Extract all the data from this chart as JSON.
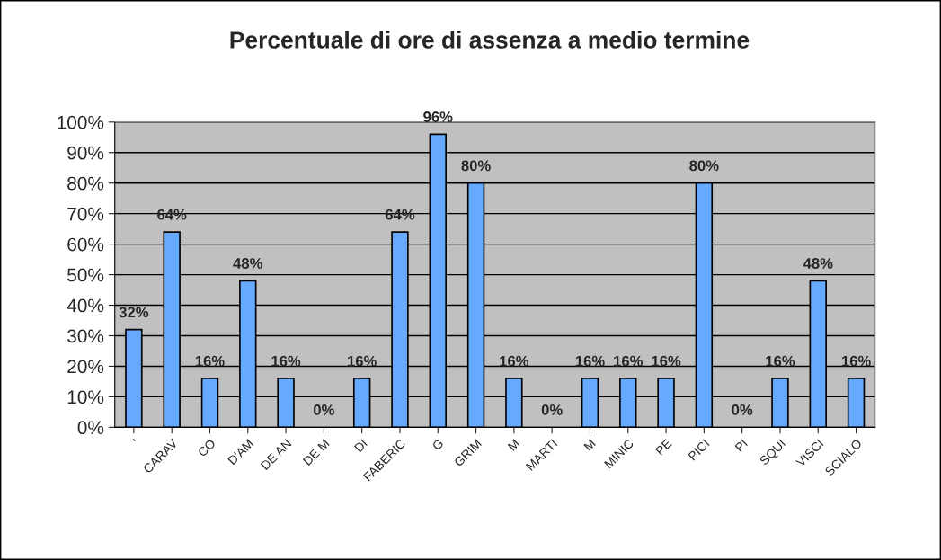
{
  "chart_data": {
    "type": "bar",
    "title": "Percentuale di ore di assenza a medio termine",
    "categories": [
      "'",
      "CARAV",
      "CO",
      "D'AM",
      "DE AN",
      "DE M",
      "DI",
      "FABERIC",
      "G",
      "GRIM",
      "M",
      "MARTI",
      "M",
      "MINIC",
      "PE",
      "PICI",
      "PI",
      "SQUI",
      "VISCI",
      "SCIALO"
    ],
    "values": [
      32,
      64,
      16,
      48,
      16,
      0,
      16,
      64,
      96,
      80,
      16,
      0,
      16,
      16,
      16,
      80,
      0,
      16,
      48,
      16
    ],
    "value_labels": [
      "32%",
      "64%",
      "16%",
      "48%",
      "16%",
      "0%",
      "16%",
      "64%",
      "96%",
      "80%",
      "16%",
      "0%",
      "16%",
      "16%",
      "16%",
      "80%",
      "0%",
      "16%",
      "48%",
      "16%"
    ],
    "color": "#66aaff",
    "ylim": [
      0,
      100
    ],
    "yticks": [
      {
        "value": 0,
        "label": "0%"
      },
      {
        "value": 10,
        "label": "10%"
      },
      {
        "value": 20,
        "label": "20%"
      },
      {
        "value": 30,
        "label": "30%"
      },
      {
        "value": 40,
        "label": "40%"
      },
      {
        "value": 50,
        "label": "50%"
      },
      {
        "value": 60,
        "label": "60%"
      },
      {
        "value": 70,
        "label": "70%"
      },
      {
        "value": 80,
        "label": "80%"
      },
      {
        "value": 90,
        "label": "90%"
      },
      {
        "value": 100,
        "label": "100%"
      }
    ],
    "grid": "y",
    "legend": false
  }
}
